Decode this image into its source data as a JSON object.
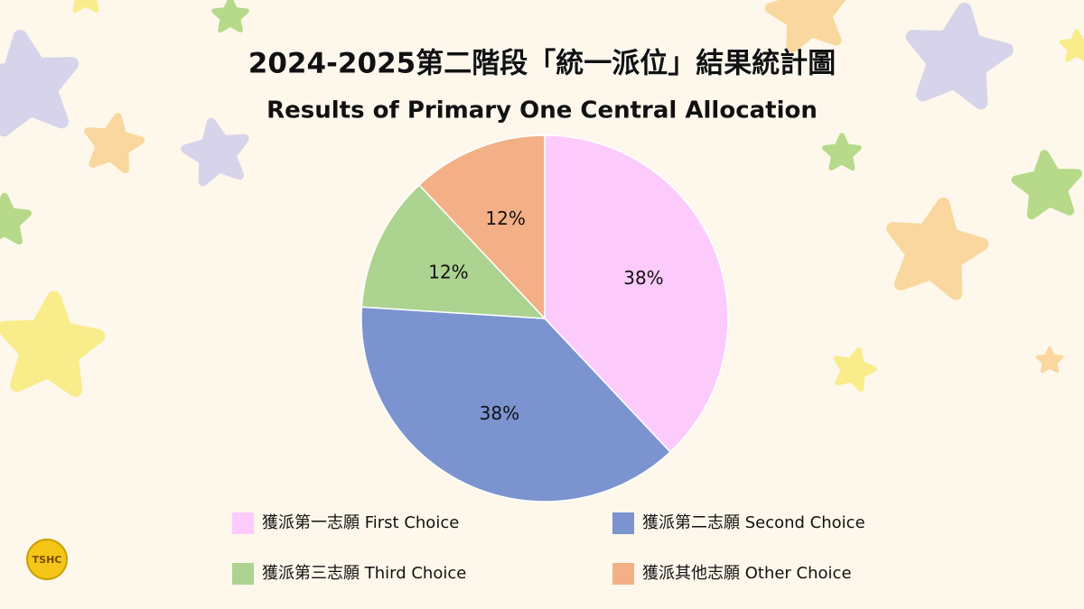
{
  "chart_data": {
    "type": "pie",
    "title": "2024-2025第二階段「統一派位」結果統計圖",
    "subtitle": "Results of Primary One Central Allocation",
    "categories": [
      "獲派第一志願 First Choice",
      "獲派第二志願 Second Choice",
      "獲派第三志願 Third Choice",
      "獲派其他志願 Other Choice"
    ],
    "values": [
      38,
      38,
      12,
      12
    ],
    "value_labels": [
      "38%",
      "38%",
      "12%",
      "12%"
    ],
    "colors": [
      "#fccbfc",
      "#7b93cf",
      "#acd38f",
      "#f3b086"
    ]
  },
  "logo": "TSHC"
}
